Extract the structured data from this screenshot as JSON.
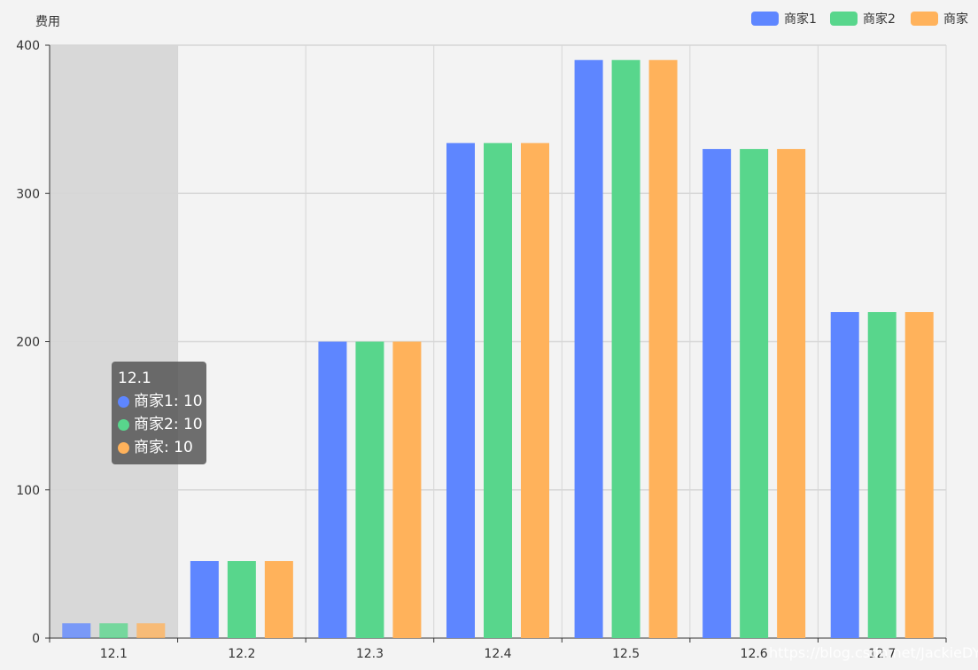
{
  "chart_data": {
    "type": "bar",
    "ylabel": "费用",
    "ylim": [
      0,
      400
    ],
    "yticks": [
      0,
      100,
      200,
      300,
      400
    ],
    "categories": [
      "12.1",
      "12.2",
      "12.3",
      "12.4",
      "12.5",
      "12.6",
      "12.7"
    ],
    "series": [
      {
        "name": "商家1",
        "color": "#5e86ff",
        "values": [
          10,
          52,
          200,
          334,
          390,
          330,
          220
        ]
      },
      {
        "name": "商家2",
        "color": "#58d68c",
        "values": [
          10,
          52,
          200,
          334,
          390,
          330,
          220
        ]
      },
      {
        "name": "商家",
        "color": "#ffb25b",
        "values": [
          10,
          52,
          200,
          334,
          390,
          330,
          220
        ]
      }
    ],
    "grid": true,
    "legend_position": "top-right",
    "highlighted_category": "12.1"
  },
  "tooltip": {
    "title": "12.1",
    "rows": [
      {
        "text": "商家1: 10",
        "color": "#5e86ff"
      },
      {
        "text": "商家2: 10",
        "color": "#58d68c"
      },
      {
        "text": "商家: 10",
        "color": "#ffb25b"
      }
    ]
  },
  "watermark": "https://blog.csdn.net/JackieDYH"
}
